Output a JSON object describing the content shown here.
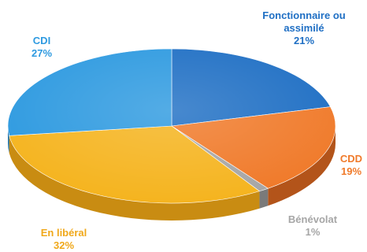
{
  "chart_data": {
    "type": "pie",
    "title": "",
    "legend": "none",
    "slices": [
      {
        "label": "Fonctionnaire ou\nassimilé",
        "value": 21,
        "value_label": "21%",
        "color": "#1f6fc4",
        "side_color": "#14508f",
        "label_color": "#1f6fc4"
      },
      {
        "label": "CDD",
        "value": 19,
        "value_label": "19%",
        "color": "#f07a2a",
        "side_color": "#b3541a",
        "label_color": "#f07a2a"
      },
      {
        "label": "Bénévolat",
        "value": 1,
        "value_label": "1%",
        "color": "#a6a6a6",
        "side_color": "#7a7a7a",
        "label_color": "#a6a6a6"
      },
      {
        "label": "En libéral",
        "value": 32,
        "value_label": "32%",
        "color": "#f5b41f",
        "side_color": "#c98c12",
        "label_color": "#f0a81a"
      },
      {
        "label": "CDI",
        "value": 27,
        "value_label": "27%",
        "color": "#2e9ae0",
        "side_color": "#1f73ab",
        "label_color": "#2e9ae0"
      }
    ]
  }
}
